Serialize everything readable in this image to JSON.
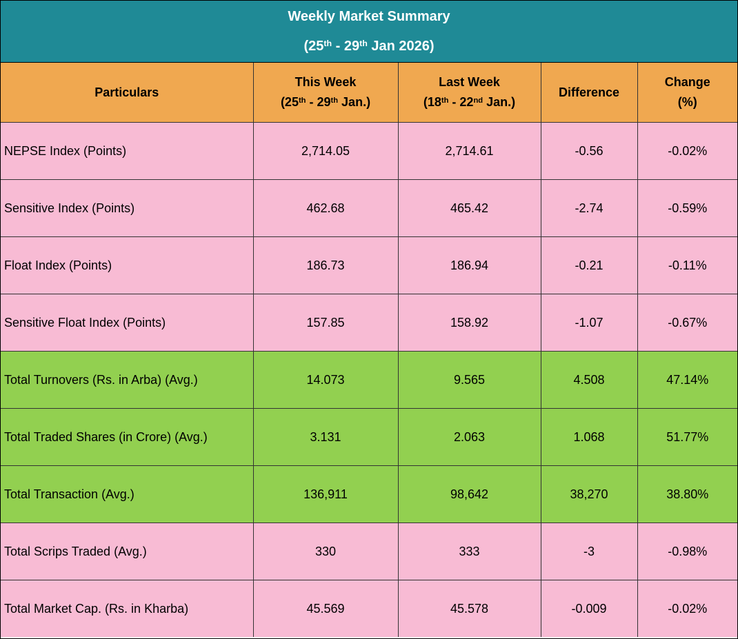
{
  "title": {
    "line1": "Weekly Market Summary",
    "range_open": "(25",
    "range_sup1": "th",
    "range_mid": " - 29",
    "range_sup2": "th",
    "range_close": " Jan 2026)"
  },
  "header": {
    "particulars": "Particulars",
    "this_week": {
      "label": "This Week",
      "d1": "(25",
      "s1": "th",
      "d2": "  - 29",
      "s2": "th",
      "d3": " Jan.)"
    },
    "last_week": {
      "label": "Last Week",
      "d1": "(18",
      "s1": "th",
      "d2": "  - 22",
      "s2": "nd",
      "d3": " Jan.)"
    },
    "difference": "Difference",
    "change_label": "Change",
    "change_unit": "(%)"
  },
  "colors": {
    "title_band": "#1f8a96",
    "header": "#f0a850",
    "pink_row": "#f8bbd4",
    "green_row": "#92d050"
  },
  "rows": [
    {
      "particular": "NEPSE Index (Points)",
      "this_week": "2,714.05",
      "last_week": "2,714.61",
      "difference": "-0.56",
      "change": "-0.02%",
      "tone": "pink"
    },
    {
      "particular": "Sensitive Index (Points)",
      "this_week": "462.68",
      "last_week": "465.42",
      "difference": "-2.74",
      "change": "-0.59%",
      "tone": "pink"
    },
    {
      "particular": "Float Index (Points)",
      "this_week": "186.73",
      "last_week": "186.94",
      "difference": "-0.21",
      "change": "-0.11%",
      "tone": "pink"
    },
    {
      "particular": "Sensitive Float Index (Points)",
      "this_week": "157.85",
      "last_week": "158.92",
      "difference": "-1.07",
      "change": "-0.67%",
      "tone": "pink"
    },
    {
      "particular": "Total Turnovers (Rs. in Arba) (Avg.)",
      "this_week": "14.073",
      "last_week": "9.565",
      "difference": "4.508",
      "change": "47.14%",
      "tone": "green"
    },
    {
      "particular": "Total Traded Shares (in Crore) (Avg.)",
      "this_week": "3.131",
      "last_week": "2.063",
      "difference": "1.068",
      "change": "51.77%",
      "tone": "green"
    },
    {
      "particular": "Total Transaction (Avg.)",
      "this_week": "136,911",
      "last_week": "98,642",
      "difference": "38,270",
      "change": "38.80%",
      "tone": "green"
    },
    {
      "particular": "Total Scrips Traded (Avg.)",
      "this_week": "330",
      "last_week": "333",
      "difference": "-3",
      "change": "-0.98%",
      "tone": "pink"
    },
    {
      "particular": "Total Market Cap. (Rs. in Kharba)",
      "this_week": "45.569",
      "last_week": "45.578",
      "difference": "-0.009",
      "change": "-0.02%",
      "tone": "pink"
    }
  ]
}
